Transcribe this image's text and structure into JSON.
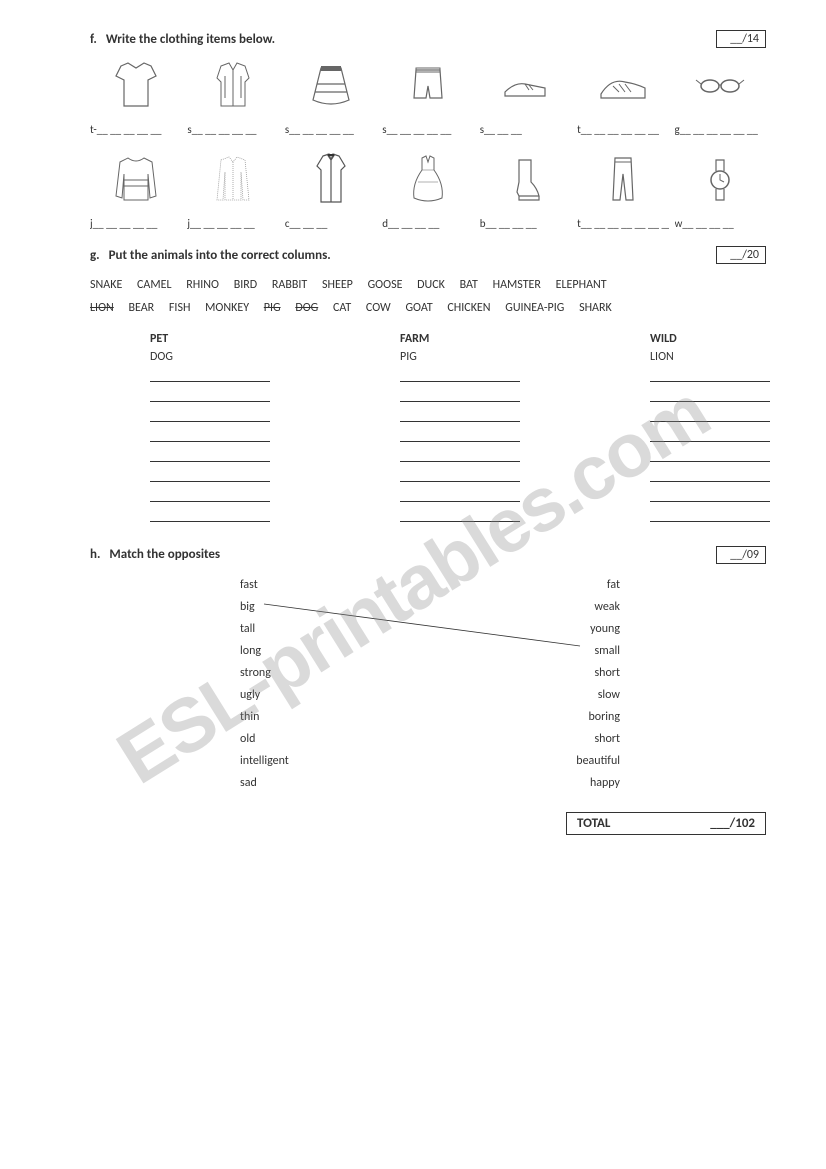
{
  "watermark": "ESL-printables.com",
  "section_f": {
    "letter": "f.",
    "title": "Write the clothing items below.",
    "score": "__/14",
    "row1_labels": [
      "t-__ __ __ __ __",
      "s__ __ __ __ __",
      "s__ __ __ __ __",
      "s__ __ __ __ __",
      "s__ __ __",
      "t__ __ __ __ __ __",
      "g__ __ __ __ __ __"
    ],
    "row2_labels": [
      "j__ __ __ __ __",
      "j__ __ __ __ __",
      "c__ __ __",
      "d__ __ __ __",
      "b__ __ __ __",
      "t__ __ __ __ __ __ __",
      "w__ __ __ __"
    ]
  },
  "section_g": {
    "letter": "g.",
    "title": "Put the animals into the correct columns.",
    "score": "__/20",
    "words_line1": [
      "SNAKE",
      "CAMEL",
      "RHINO",
      "BIRD",
      "RABBIT",
      "SHEEP",
      "GOOSE",
      "DUCK",
      "BAT",
      "HAMSTER",
      "ELEPHANT"
    ],
    "words_line2_pre": [],
    "words_line2_struck": [
      "LION"
    ],
    "words_line2_mid": [
      "BEAR",
      "FISH",
      "MONKEY"
    ],
    "words_line2_struck2": [
      "PIG",
      "DOG"
    ],
    "words_line2_post": [
      "CAT",
      "COW",
      "GOAT",
      "CHICKEN",
      "GUINEA-PIG",
      "SHARK"
    ],
    "columns": {
      "pet": {
        "header": "PET",
        "first": "DOG",
        "blanks": 8
      },
      "farm": {
        "header": "FARM",
        "first": "PIG",
        "blanks": 8
      },
      "wild": {
        "header": "WILD",
        "first": "LION",
        "blanks": 8
      }
    }
  },
  "section_h": {
    "letter": "h.",
    "title": "Match the opposites",
    "score": "__/09",
    "pairs": [
      {
        "left": "fast",
        "right": "fat"
      },
      {
        "left": "big",
        "right": "weak"
      },
      {
        "left": "tall",
        "right": "young"
      },
      {
        "left": "long",
        "right": "small"
      },
      {
        "left": "strong",
        "right": "short"
      },
      {
        "left": "ugly",
        "right": "slow"
      },
      {
        "left": "thin",
        "right": "boring"
      },
      {
        "left": "old",
        "right": "short"
      },
      {
        "left": "intelligent",
        "right": "beautiful"
      },
      {
        "left": "sad",
        "right": "happy"
      }
    ]
  },
  "total": {
    "label": "TOTAL",
    "value": "___/102"
  }
}
